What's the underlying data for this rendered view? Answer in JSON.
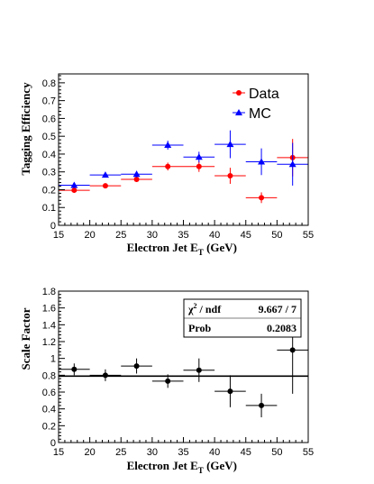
{
  "chart_data": [
    {
      "type": "scatter",
      "xlabel": "Electron Jet E",
      "xlabel_sub": "T",
      "xlabel_unit": " (GeV)",
      "ylabel": "Tagging Efficiency",
      "xlim": [
        15,
        55
      ],
      "ylim": [
        0,
        0.85
      ],
      "xticks": [
        "15",
        "20",
        "25",
        "30",
        "35",
        "40",
        "45",
        "50",
        "55"
      ],
      "yticks": [
        "0",
        "0.1",
        "0.2",
        "0.3",
        "0.4",
        "0.5",
        "0.6",
        "0.7",
        "0.8"
      ],
      "legend_position": "top-right",
      "series": [
        {
          "name": "Data",
          "color": "#ff0000",
          "marker": "circle",
          "x": [
            17.5,
            22.5,
            27.5,
            32.5,
            37.5,
            42.5,
            47.5,
            52.5
          ],
          "xerr": [
            2.5,
            2.5,
            2.5,
            2.5,
            2.5,
            2.5,
            2.5,
            2.5
          ],
          "y": [
            0.197,
            0.222,
            0.258,
            0.33,
            0.33,
            0.278,
            0.155,
            0.38
          ],
          "yerr": [
            0.013,
            0.012,
            0.014,
            0.022,
            0.03,
            0.045,
            0.03,
            0.105
          ]
        },
        {
          "name": "MC",
          "color": "#0000ff",
          "marker": "triangle",
          "x": [
            17.5,
            22.5,
            27.5,
            32.5,
            37.5,
            42.5,
            47.5,
            52.5
          ],
          "xerr": [
            2.5,
            2.5,
            2.5,
            2.5,
            2.5,
            2.5,
            2.5,
            2.5
          ],
          "y": [
            0.225,
            0.283,
            0.287,
            0.45,
            0.383,
            0.455,
            0.357,
            0.343
          ],
          "yerr": [
            0.01,
            0.013,
            0.018,
            0.025,
            0.03,
            0.078,
            0.075,
            0.12
          ]
        }
      ]
    },
    {
      "type": "scatter",
      "xlabel": "Electron Jet E",
      "xlabel_sub": "T",
      "xlabel_unit": " (GeV)",
      "ylabel": "Scale Factor",
      "xlim": [
        15,
        55
      ],
      "ylim": [
        0,
        1.8
      ],
      "xticks": [
        "15",
        "20",
        "25",
        "30",
        "35",
        "40",
        "45",
        "50",
        "55"
      ],
      "yticks": [
        "0",
        "0.2",
        "0.4",
        "0.6",
        "0.8",
        "1",
        "1.2",
        "1.4",
        "1.6",
        "1.8"
      ],
      "fit_line": 0.79,
      "stats": {
        "chi2_label": "χ",
        "chi2_sup": "2",
        "chi2_rest": " / ndf",
        "chi2_value": "9.667 / 7",
        "prob_label": "Prob",
        "prob_value": "0.2083"
      },
      "series": [
        {
          "color": "#000000",
          "marker": "circle",
          "x": [
            17.5,
            22.5,
            27.5,
            32.5,
            37.5,
            42.5,
            47.5,
            52.5
          ],
          "xerr": [
            2.5,
            2.5,
            2.5,
            2.5,
            2.5,
            2.5,
            2.5,
            2.5
          ],
          "y": [
            0.87,
            0.8,
            0.91,
            0.73,
            0.86,
            0.61,
            0.44,
            1.1
          ],
          "yerr": [
            0.07,
            0.07,
            0.09,
            0.08,
            0.14,
            0.19,
            0.14,
            0.52
          ]
        }
      ]
    }
  ]
}
